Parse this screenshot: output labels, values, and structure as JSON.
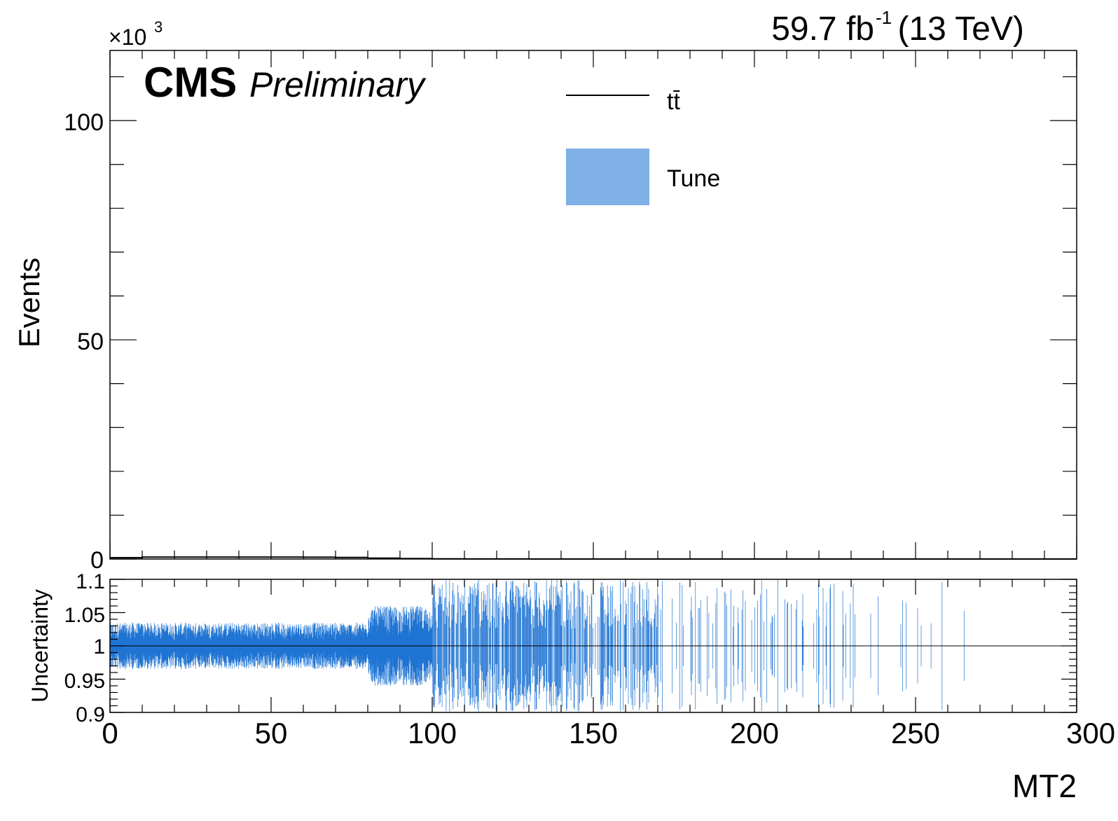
{
  "header": {
    "lumi": "59.7 fb",
    "lumi_exp": "-1",
    "energy": "(13 TeV)",
    "cms": "CMS",
    "preliminary": "Preliminary",
    "multiplier_base": "×10",
    "multiplier_exp": "3"
  },
  "colors": {
    "band": "#1f74d3",
    "band_legend": "#7fb0e6",
    "line": "#000000"
  },
  "chart_data": [
    {
      "type": "line",
      "panel": "main",
      "xlabel": "MT2",
      "ylabel": "Events",
      "xlim": [
        0,
        300
      ],
      "ylim": [
        0,
        116
      ],
      "y_multiplier": "×10^3",
      "x_ticks": [
        "0",
        "50",
        "100",
        "150",
        "200",
        "250",
        "300"
      ],
      "y_ticks": [
        "0",
        "50",
        "100"
      ],
      "legend": {
        "placement": "top-center",
        "entries": [
          {
            "label": "tt̄",
            "style": "line"
          },
          {
            "label": "Tune",
            "style": "fill"
          }
        ]
      },
      "series": [
        {
          "name": "tt̄",
          "x": [
            0,
            10,
            20,
            30,
            40,
            50,
            60,
            70,
            80,
            90,
            100,
            110,
            120,
            130,
            140,
            150,
            200,
            250,
            300
          ],
          "values": [
            0.3,
            0.45,
            0.45,
            0.45,
            0.45,
            0.45,
            0.42,
            0.35,
            0.2,
            0.1,
            0.04,
            0.02,
            0.01,
            0.005,
            0.002,
            0.001,
            0,
            0,
            0
          ]
        }
      ]
    },
    {
      "type": "area",
      "panel": "ratio",
      "ylabel": "Uncertainty",
      "xlim": [
        0,
        300
      ],
      "ylim": [
        0.9,
        1.1
      ],
      "y_ticks": [
        "0.9",
        "0.95",
        "1",
        "1.05",
        "1.1"
      ],
      "reference_line": 1.0,
      "series": [
        {
          "name": "Tune",
          "x_ranges": [
            [
              0,
              80
            ],
            [
              80,
              100
            ],
            [
              100,
              140
            ],
            [
              140,
              170
            ],
            [
              170,
              235
            ],
            [
              235,
              275
            ]
          ],
          "half_width": [
            0.035,
            0.06,
            0.1,
            0.1,
            0.1,
            0.1
          ],
          "coverage": [
            1.0,
            1.0,
            0.9,
            0.6,
            0.2,
            0.05
          ]
        }
      ]
    }
  ]
}
